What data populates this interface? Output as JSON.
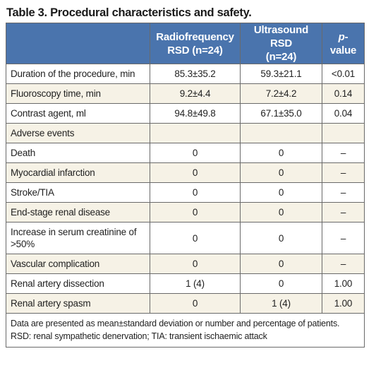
{
  "title": "Table 3. Procedural characteristics and safety.",
  "columns": {
    "c1_line1": "Radiofrequency",
    "c1_line2": "RSD (n=24)",
    "c2_line1": "Ultrasound RSD",
    "c2_line2": "(n=24)",
    "c3_italic": "p",
    "c3_rest": "-value"
  },
  "rows": [
    {
      "label": "Duration of the procedure, min",
      "rf": "85.3±35.2",
      "us": "59.3±21.1",
      "p": "<0.01"
    },
    {
      "label": "Fluoroscopy time, min",
      "rf": "9.2±4.4",
      "us": "7.2±4.2",
      "p": "0.14"
    },
    {
      "label": "Contrast agent, ml",
      "rf": "94.8±49.8",
      "us": "67.1±35.0",
      "p": "0.04"
    },
    {
      "label": "Adverse events",
      "rf": "",
      "us": "",
      "p": ""
    },
    {
      "label": "Death",
      "rf": "0",
      "us": "0",
      "p": "–"
    },
    {
      "label": "Myocardial infarction",
      "rf": "0",
      "us": "0",
      "p": "–"
    },
    {
      "label": "Stroke/TIA",
      "rf": "0",
      "us": "0",
      "p": "–"
    },
    {
      "label": "End-stage renal disease",
      "rf": "0",
      "us": "0",
      "p": "–"
    },
    {
      "label": "Increase in serum creatinine of >50%",
      "rf": "0",
      "us": "0",
      "p": "–"
    },
    {
      "label": "Vascular complication",
      "rf": "0",
      "us": "0",
      "p": "–"
    },
    {
      "label": "Renal artery dissection",
      "rf": "1 (4)",
      "us": "0",
      "p": "1.00"
    },
    {
      "label": "Renal artery spasm",
      "rf": "0",
      "us": "1 (4)",
      "p": "1.00"
    }
  ],
  "footnote": {
    "line1": "Data are presented as mean±standard deviation or number and percentage of patients.",
    "line2": "RSD: renal sympathetic denervation; TIA: transient ischaemic attack"
  },
  "colors": {
    "header_bg": "#4a74ad",
    "alt_row_bg": "#f6f2e6",
    "border": "#6a6a6a"
  }
}
